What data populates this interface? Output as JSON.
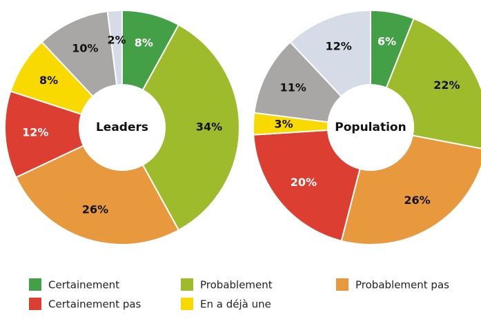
{
  "chart_data": [
    {
      "type": "donut",
      "title": "Leaders",
      "categories": [
        "Certainement",
        "Probablement",
        "Probablement pas",
        "Certainement pas",
        "En a déjà une",
        null,
        null
      ],
      "values": [
        8,
        34,
        26,
        12,
        8,
        10,
        2
      ],
      "value_labels": [
        "8%",
        "34%",
        "26%",
        "12%",
        "8%",
        "10%",
        "2%"
      ],
      "colors": [
        "#43a047",
        "#9dbb2b",
        "#e8993e",
        "#dc3f31",
        "#f8da00",
        "#a9a7a5",
        "#d5dce8"
      ]
    },
    {
      "type": "donut",
      "title": "Population",
      "categories": [
        "Certainement",
        "Probablement",
        "Probablement pas",
        "Certainement pas",
        "En a déjà une",
        null,
        null
      ],
      "values": [
        6,
        22,
        26,
        20,
        3,
        11,
        12
      ],
      "value_labels": [
        "6%",
        "22%",
        "26%",
        "20%",
        "3%",
        "11%",
        "12%"
      ],
      "colors": [
        "#43a047",
        "#9dbb2b",
        "#e8993e",
        "#dc3f31",
        "#f8da00",
        "#a9a7a5",
        "#d5dce8"
      ]
    }
  ]
}
